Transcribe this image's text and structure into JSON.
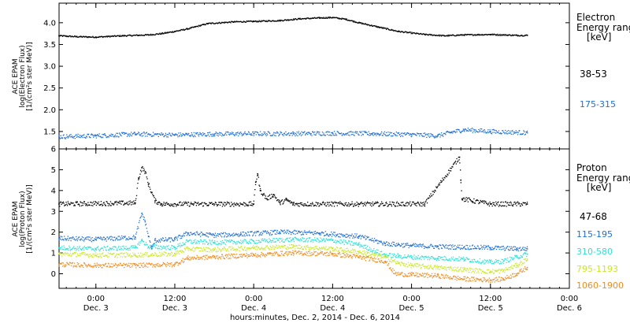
{
  "x_axis": {
    "ticks": [
      {
        "time": "0:00",
        "date": "Dec. 3",
        "hours": 0
      },
      {
        "time": "12:00",
        "date": "Dec. 3",
        "hours": 12
      },
      {
        "time": "0:00",
        "date": "Dec. 4",
        "hours": 24
      },
      {
        "time": "12:00",
        "date": "Dec. 4",
        "hours": 36
      },
      {
        "time": "0:00",
        "date": "Dec. 5",
        "hours": 48
      },
      {
        "time": "12:00",
        "date": "Dec. 5",
        "hours": 60
      },
      {
        "time": "0:00",
        "date": "Dec. 6",
        "hours": 72
      }
    ],
    "label": "hours:minutes, Dec.  2, 2014 - Dec.  6, 2014",
    "range_hours": [
      -5.6,
      72
    ],
    "data_end_hours": 65.6
  },
  "electron_panel": {
    "ylabel": [
      "ACE EPAM",
      "log(Electron Flux)",
      "[1/(cm²s ster MeV)]"
    ],
    "legend_title": [
      "Electron",
      "Energy range",
      "[keV]"
    ],
    "channels": [
      {
        "label": "38-53",
        "color": "#000000"
      },
      {
        "label": "175-315",
        "color": "#1f6fd6"
      }
    ]
  },
  "proton_panel": {
    "ylabel": [
      "ACE EPAM",
      "log(Proton Flux)",
      "[1/(cm²s ster MeV)]"
    ],
    "legend_title": [
      "Proton",
      "Energy range",
      "[keV]"
    ],
    "channels": [
      {
        "label": "47-68",
        "color": "#000000"
      },
      {
        "label": "115-195",
        "color": "#1f6fd6"
      },
      {
        "label": "310-580",
        "color": "#2ee0d6"
      },
      {
        "label": "795-1193",
        "color": "#c9e82a"
      },
      {
        "label": "1060-1900",
        "color": "#f08a1e"
      }
    ]
  },
  "chart_data": [
    {
      "type": "scatter",
      "title": "",
      "xlabel": "hours:minutes, Dec.  2, 2014 - Dec.  6, 2014",
      "ylabel": "ACE EPAM log(Electron Flux) [1/(cm²s ster MeV)]",
      "x_unit": "hours since Dec. 3 0:00 UT",
      "ylim": [
        1.1,
        4.45
      ],
      "yticks": [
        1.5,
        2.0,
        2.5,
        3.0,
        3.5,
        4.0
      ],
      "series": [
        {
          "name": "38-53",
          "x": [
            -5.6,
            -3,
            0,
            4,
            8,
            10,
            12,
            14,
            17,
            21,
            24,
            28,
            31,
            34,
            36,
            38,
            40,
            43,
            46,
            50,
            53,
            56,
            60,
            64,
            65.6
          ],
          "y": [
            3.7,
            3.68,
            3.67,
            3.7,
            3.72,
            3.75,
            3.8,
            3.86,
            3.98,
            4.02,
            4.03,
            4.05,
            4.09,
            4.11,
            4.12,
            4.08,
            4.0,
            3.9,
            3.8,
            3.73,
            3.7,
            3.72,
            3.73,
            3.71,
            3.71
          ]
        },
        {
          "name": "175-315",
          "x": [
            -5.6,
            0,
            6,
            12,
            18,
            24,
            30,
            36,
            42,
            48,
            52,
            54,
            56,
            60,
            65.6
          ],
          "y": [
            1.38,
            1.4,
            1.44,
            1.42,
            1.44,
            1.45,
            1.45,
            1.46,
            1.45,
            1.43,
            1.4,
            1.48,
            1.54,
            1.5,
            1.47
          ]
        }
      ]
    },
    {
      "type": "scatter",
      "title": "",
      "xlabel": "hours:minutes, Dec.  2, 2014 - Dec.  6, 2014",
      "ylabel": "ACE EPAM log(Proton Flux) [1/(cm²s ster MeV)]",
      "x_unit": "hours since Dec. 3 0:00 UT",
      "ylim": [
        -0.7,
        6.0
      ],
      "yticks": [
        0,
        1,
        2,
        3,
        4,
        5,
        6
      ],
      "series": [
        {
          "name": "47-68",
          "x": [
            -5.6,
            6,
            6.5,
            7,
            7.5,
            8,
            8.5,
            9,
            10,
            24,
            24.3,
            24.6,
            25,
            26,
            27,
            28,
            29,
            30,
            40,
            50,
            55.3,
            55.5,
            55.7,
            60,
            65.6
          ],
          "y": [
            3.35,
            3.4,
            4.6,
            5.1,
            4.9,
            4.3,
            3.9,
            3.5,
            3.35,
            3.35,
            4.4,
            4.8,
            4.0,
            3.6,
            3.8,
            3.4,
            3.55,
            3.35,
            3.35,
            3.35,
            5.6,
            4.5,
            3.6,
            3.35,
            3.35
          ]
        },
        {
          "name": "115-195",
          "x": [
            -5.6,
            0,
            6,
            7,
            7.5,
            8,
            8.5,
            9,
            12,
            14,
            18,
            22,
            28,
            34,
            40,
            44,
            46,
            48,
            52,
            56,
            60,
            64,
            65.6
          ],
          "y": [
            1.7,
            1.65,
            1.75,
            2.9,
            2.5,
            1.8,
            1.2,
            1.6,
            1.65,
            1.95,
            1.85,
            1.9,
            2.0,
            1.95,
            1.8,
            1.45,
            1.4,
            1.35,
            1.3,
            1.28,
            1.25,
            1.2,
            1.2
          ]
        },
        {
          "name": "310-580",
          "x": [
            -5.6,
            0,
            6,
            7,
            8,
            12,
            14,
            18,
            24,
            30,
            36,
            40,
            44,
            46,
            48,
            52,
            56,
            60,
            62,
            64,
            65.6
          ],
          "y": [
            1.25,
            1.2,
            1.25,
            1.6,
            1.3,
            1.25,
            1.55,
            1.5,
            1.55,
            1.65,
            1.6,
            1.4,
            0.9,
            0.85,
            0.8,
            0.75,
            0.7,
            0.55,
            0.6,
            0.8,
            0.95
          ]
        },
        {
          "name": "795-1193",
          "x": [
            -5.6,
            0,
            6,
            12,
            14,
            18,
            24,
            30,
            36,
            40,
            44,
            46,
            48,
            52,
            56,
            60,
            62,
            64,
            65.6
          ],
          "y": [
            0.95,
            0.9,
            0.9,
            0.95,
            1.2,
            1.15,
            1.25,
            1.3,
            1.2,
            1.05,
            0.8,
            0.5,
            0.4,
            0.3,
            0.2,
            0.1,
            0.15,
            0.4,
            0.7
          ]
        },
        {
          "name": "1060-1900",
          "x": [
            -5.6,
            0,
            6,
            12,
            14,
            18,
            24,
            30,
            36,
            40,
            44,
            45.5,
            48,
            52,
            56,
            60,
            62,
            64,
            65.6
          ],
          "y": [
            0.45,
            0.4,
            0.4,
            0.45,
            0.75,
            0.8,
            0.9,
            1.0,
            0.95,
            0.8,
            0.6,
            0.0,
            -0.05,
            -0.1,
            -0.25,
            -0.3,
            -0.25,
            0.0,
            0.3
          ]
        }
      ]
    }
  ]
}
